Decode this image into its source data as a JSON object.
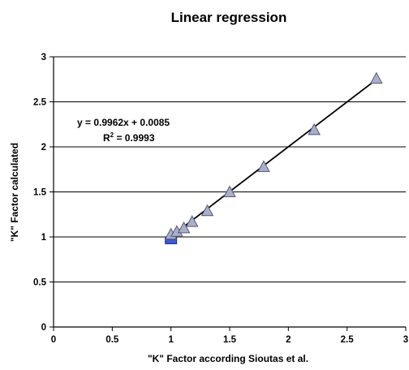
{
  "chart_data": {
    "type": "scatter",
    "title": "Linear regression",
    "xlabel": "\"K\" Factor according Sioutas et al.",
    "ylabel": "\"K\" Factor calculated",
    "xlim": [
      0,
      3
    ],
    "ylim": [
      0,
      3
    ],
    "x_ticks": [
      "0",
      "0.5",
      "1",
      "1.5",
      "2",
      "2.5",
      "3"
    ],
    "y_ticks": [
      "0",
      "0.5",
      "1",
      "1.5",
      "2",
      "2.5",
      "3"
    ],
    "grid": "horizontal",
    "marker_color": "#a9aecd",
    "series": [
      {
        "points": [
          {
            "x": 1.0,
            "y": 1.03
          },
          {
            "x": 1.05,
            "y": 1.06
          },
          {
            "x": 1.11,
            "y": 1.1
          },
          {
            "x": 1.18,
            "y": 1.17
          },
          {
            "x": 1.31,
            "y": 1.29
          },
          {
            "x": 1.5,
            "y": 1.5
          },
          {
            "x": 1.79,
            "y": 1.78
          },
          {
            "x": 2.22,
            "y": 2.19
          },
          {
            "x": 2.75,
            "y": 2.76
          }
        ]
      }
    ],
    "base_marker": {
      "x": 1.0,
      "y": 0.96,
      "color": "#3b5bd6"
    },
    "trendline": {
      "slope": 0.9962,
      "intercept": 0.0085,
      "x_range": [
        1.0,
        2.75
      ]
    },
    "annotations": {
      "equation": "y = 0.9962x + 0.0085",
      "r2_label": "R",
      "r2_sup": "2",
      "r2_value": " = 0.9993"
    }
  }
}
